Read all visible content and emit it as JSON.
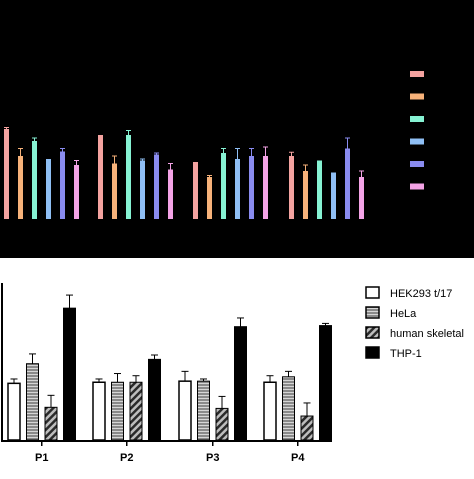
{
  "chart_data": [
    {
      "type": "bar",
      "panel": "top",
      "background": "#000000",
      "categories": [
        "",
        "",
        "",
        ""
      ],
      "series": [
        {
          "color": "#f4a3a0",
          "values": [
            0.6,
            0.56,
            0.38,
            0.42
          ],
          "errors": [
            0.01,
            0.0,
            0.0,
            0.025
          ]
        },
        {
          "color": "#f7b27a",
          "values": [
            0.42,
            0.37,
            0.28,
            0.32
          ],
          "errors": [
            0.05,
            0.05,
            0.01,
            0.04
          ]
        },
        {
          "color": "#86f2d3",
          "values": [
            0.52,
            0.56,
            0.44,
            0.39
          ],
          "errors": [
            0.02,
            0.03,
            0.03,
            0.0
          ]
        },
        {
          "color": "#8fbff5",
          "values": [
            0.4,
            0.39,
            0.4,
            0.31
          ],
          "errors": [
            0.0,
            0.01,
            0.07,
            0.0
          ]
        },
        {
          "color": "#8a8cf0",
          "values": [
            0.45,
            0.43,
            0.42,
            0.47
          ],
          "errors": [
            0.02,
            0.01,
            0.05,
            0.07
          ]
        },
        {
          "color": "#f4a3e6",
          "values": [
            0.36,
            0.33,
            0.42,
            0.28
          ],
          "errors": [
            0.03,
            0.04,
            0.06,
            0.04
          ]
        }
      ],
      "ylim": [
        0,
        1
      ],
      "legend_position": "right",
      "grid": false
    },
    {
      "type": "bar",
      "panel": "bottom",
      "categories": [
        "P1",
        "P2",
        "P3",
        "P4"
      ],
      "series": [
        {
          "name": "HEK293 t/17",
          "values": [
            0.52,
            0.53,
            0.54,
            0.53
          ],
          "errors": [
            0.04,
            0.03,
            0.09,
            0.06
          ],
          "fill": "white"
        },
        {
          "name": "HeLa",
          "values": [
            0.7,
            0.53,
            0.54,
            0.58
          ],
          "errors": [
            0.09,
            0.08,
            0.02,
            0.05
          ],
          "fill": "gray-striped"
        },
        {
          "name": "human skeletal",
          "values": [
            0.3,
            0.53,
            0.29,
            0.22
          ],
          "errors": [
            0.11,
            0.06,
            0.11,
            0.12
          ],
          "fill": "hatched"
        },
        {
          "name": "THP-1",
          "values": [
            1.21,
            0.74,
            1.04,
            1.05
          ],
          "errors": [
            0.12,
            0.04,
            0.08,
            0.02
          ],
          "fill": "black"
        }
      ],
      "ylim": [
        0,
        1.45
      ],
      "legend_position": "right",
      "grid": false
    }
  ]
}
